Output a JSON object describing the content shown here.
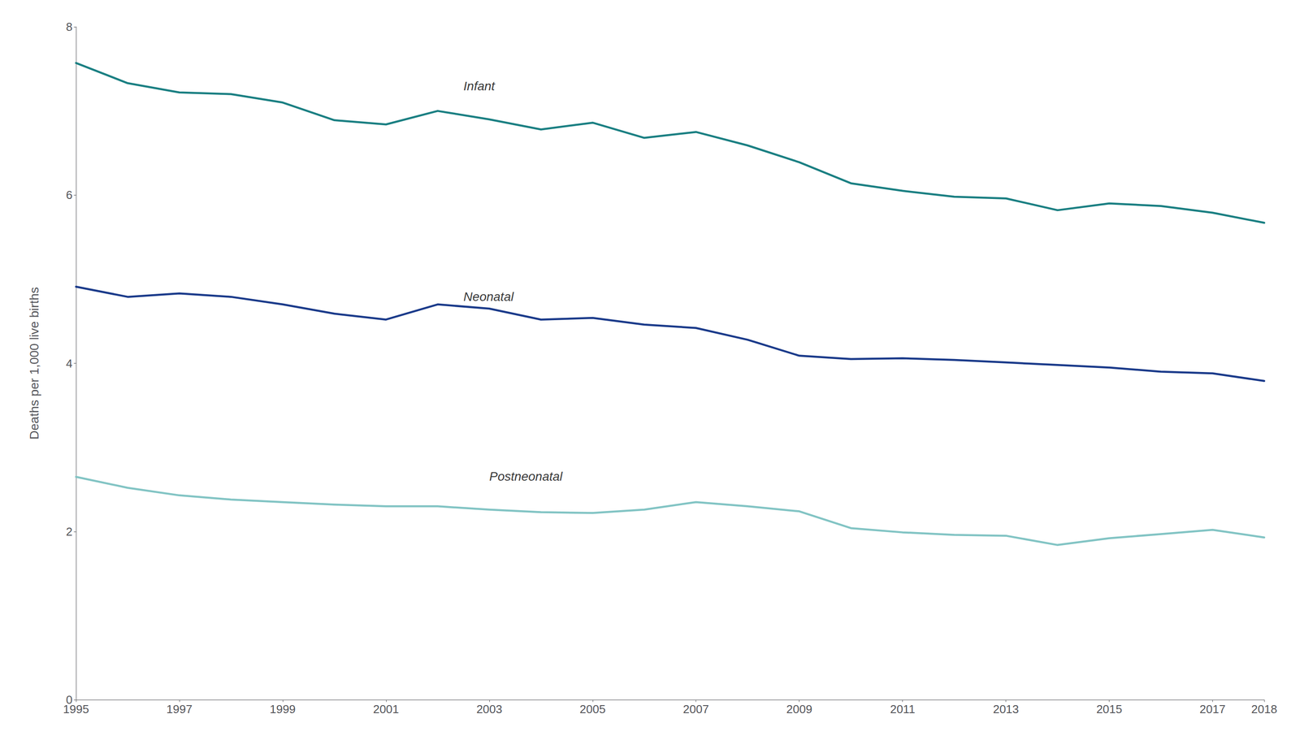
{
  "chart_data": {
    "type": "line",
    "ylabel": "Deaths per 1,000 live births",
    "x": [
      1995,
      1996,
      1997,
      1998,
      1999,
      2000,
      2001,
      2002,
      2003,
      2004,
      2005,
      2006,
      2007,
      2008,
      2009,
      2010,
      2011,
      2012,
      2013,
      2014,
      2015,
      2016,
      2017,
      2018
    ],
    "series": [
      {
        "name": "Infant",
        "color": "#1a7f82",
        "values": [
          7.57,
          7.33,
          7.22,
          7.2,
          7.1,
          6.89,
          6.84,
          7.0,
          6.9,
          6.78,
          6.86,
          6.68,
          6.75,
          6.59,
          6.39,
          6.14,
          6.05,
          5.98,
          5.96,
          5.82,
          5.9,
          5.87,
          5.79,
          5.67
        ]
      },
      {
        "name": "Neonatal",
        "color": "#1a3a8a",
        "values": [
          4.91,
          4.79,
          4.83,
          4.79,
          4.7,
          4.59,
          4.52,
          4.7,
          4.65,
          4.52,
          4.54,
          4.46,
          4.42,
          4.28,
          4.09,
          4.05,
          4.06,
          4.04,
          4.01,
          3.98,
          3.95,
          3.9,
          3.88,
          3.79
        ]
      },
      {
        "name": "Postneonatal",
        "color": "#82c4c4",
        "values": [
          2.65,
          2.52,
          2.43,
          2.38,
          2.35,
          2.32,
          2.3,
          2.3,
          2.26,
          2.23,
          2.22,
          2.26,
          2.35,
          2.3,
          2.24,
          2.04,
          1.99,
          1.96,
          1.95,
          1.84,
          1.92,
          1.97,
          2.02,
          1.93
        ]
      }
    ],
    "annotations": [
      {
        "text": "Infant",
        "x": 2002.5,
        "y": 7.22
      },
      {
        "text": "Neonatal",
        "x": 2002.5,
        "y": 4.72
      },
      {
        "text": "Postneonatal",
        "x": 2003.0,
        "y": 2.58
      }
    ],
    "xlim": [
      1995,
      2018
    ],
    "ylim": [
      0,
      8
    ],
    "xticks": [
      1995,
      1997,
      1999,
      2001,
      2003,
      2005,
      2007,
      2009,
      2011,
      2013,
      2015,
      2017,
      2018
    ],
    "yticks": [
      0,
      2,
      4,
      6,
      8
    ],
    "grid": false
  }
}
